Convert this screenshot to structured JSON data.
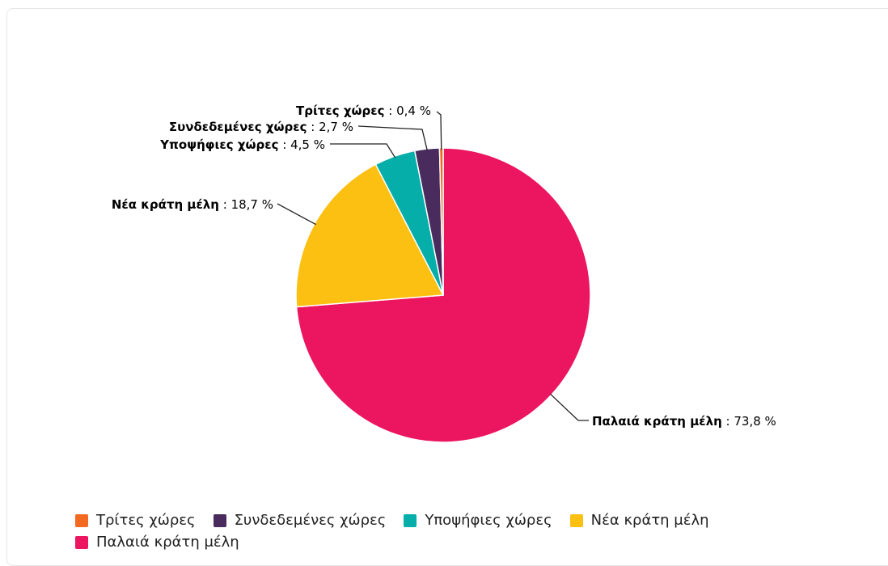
{
  "chart_data": {
    "type": "pie",
    "title": "",
    "unit": "%",
    "slices": [
      {
        "name": "Παλαιά κράτη μέλη",
        "value": 73.8,
        "display": "73,8",
        "color": "#ec1660"
      },
      {
        "name": "Νέα κράτη μέλη",
        "value": 18.7,
        "display": "18,7",
        "color": "#fbc012"
      },
      {
        "name": "Υποψήφιες χώρες",
        "value": 4.5,
        "display": "4,5",
        "color": "#05aea9"
      },
      {
        "name": "Συνδεδεμένες χώρες",
        "value": 2.7,
        "display": "2,7",
        "color": "#4a2b5e"
      },
      {
        "name": "Τρίτες χώρες",
        "value": 0.4,
        "display": "0,4",
        "color": "#f26a22"
      }
    ],
    "legend": {
      "placement": "bottom",
      "order": [
        "Τρίτες χώρες",
        "Συνδεδεμένες χώρες",
        "Υποψήφιες χώρες",
        "Νέα κράτη μέλη",
        "Παλαιά κράτη μέλη"
      ]
    }
  }
}
